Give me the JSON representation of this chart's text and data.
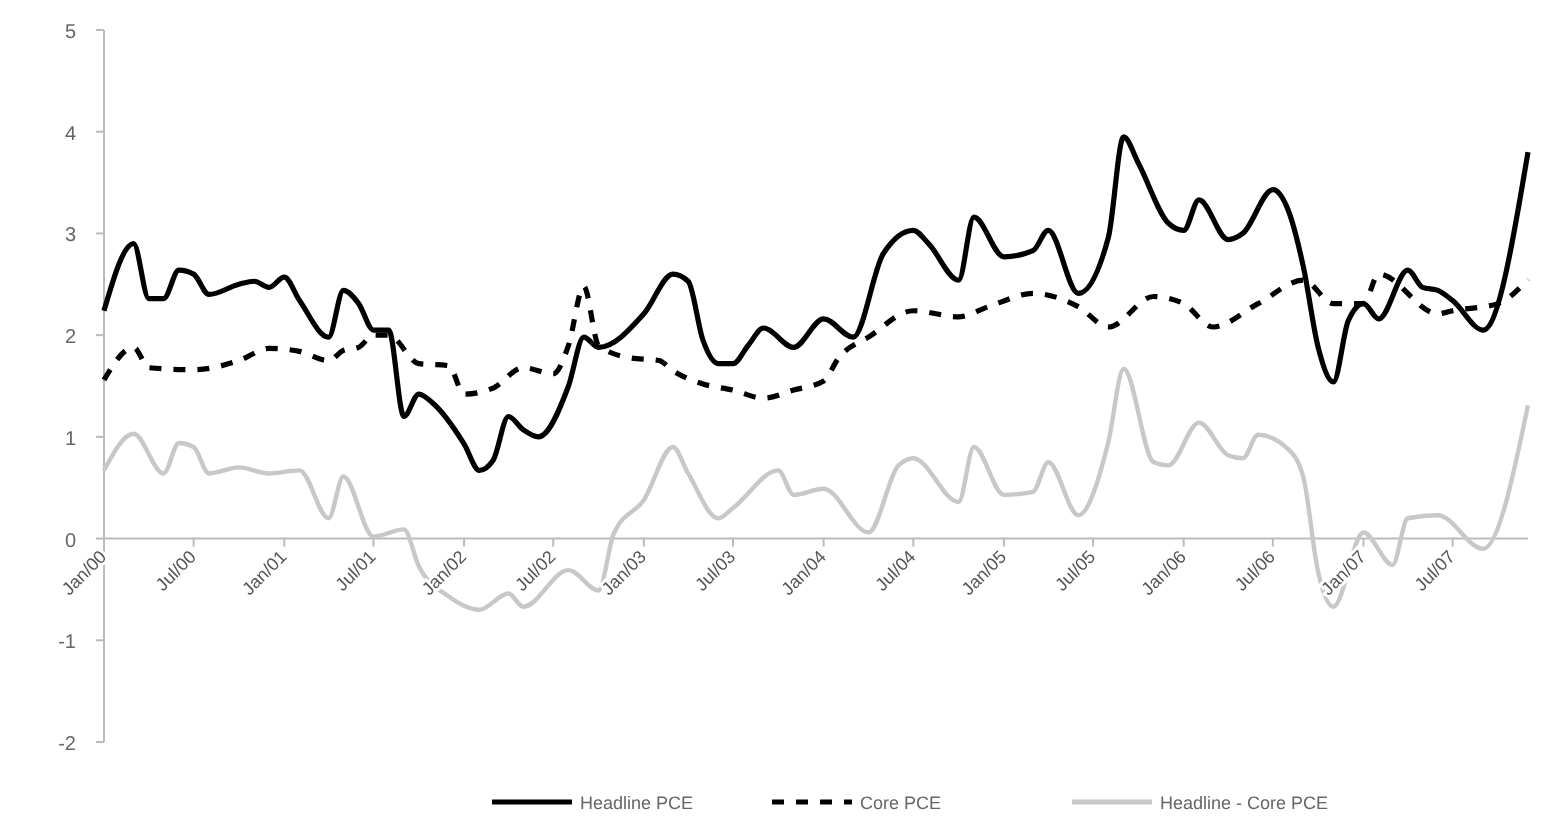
{
  "chart_data": {
    "type": "line",
    "ylim": [
      -2,
      5
    ],
    "yticks": [
      -2,
      -1,
      0,
      1,
      2,
      3,
      4,
      5
    ],
    "xlim": [
      "2000-01",
      "2007-12"
    ],
    "xticks": [
      {
        "value": "2000-01",
        "label": "Jan/00"
      },
      {
        "value": "2000-07",
        "label": "Jul/00"
      },
      {
        "value": "2001-01",
        "label": "Jan/01"
      },
      {
        "value": "2001-07",
        "label": "Jul/01"
      },
      {
        "value": "2002-01",
        "label": "Jan/02"
      },
      {
        "value": "2002-07",
        "label": "Jul/02"
      },
      {
        "value": "2003-01",
        "label": "Jan/03"
      },
      {
        "value": "2003-07",
        "label": "Jul/03"
      },
      {
        "value": "2004-01",
        "label": "Jan/04"
      },
      {
        "value": "2004-07",
        "label": "Jul/04"
      },
      {
        "value": "2005-01",
        "label": "Jan/05"
      },
      {
        "value": "2005-07",
        "label": "Jul/05"
      },
      {
        "value": "2006-01",
        "label": "Jan/06"
      },
      {
        "value": "2006-07",
        "label": "Jul/06"
      },
      {
        "value": "2007-01",
        "label": "Jan/07"
      },
      {
        "value": "2007-07",
        "label": "Jul/07"
      }
    ],
    "grid": false,
    "legend": "bottom",
    "series": [
      {
        "name": "Headline PCE",
        "color": "#000000",
        "line_style": "solid",
        "x": [
          "2000-01",
          "2000-03",
          "2000-04",
          "2000-05",
          "2000-06",
          "2000-07",
          "2000-08",
          "2000-10",
          "2000-11",
          "2000-12",
          "2001-01",
          "2001-02",
          "2001-04",
          "2001-05",
          "2001-06",
          "2001-07",
          "2001-08",
          "2001-09",
          "2001-10",
          "2001-11",
          "2002-01",
          "2002-02",
          "2002-03",
          "2002-04",
          "2002-05",
          "2002-06",
          "2002-08",
          "2002-09",
          "2002-10",
          "2003-01",
          "2003-03",
          "2003-04",
          "2003-05",
          "2003-06",
          "2003-07",
          "2003-08",
          "2003-09",
          "2003-11",
          "2004-01",
          "2004-03",
          "2004-05",
          "2004-07",
          "2004-08",
          "2004-10",
          "2004-11",
          "2005-01",
          "2005-03",
          "2005-04",
          "2005-06",
          "2005-08",
          "2005-09",
          "2005-10",
          "2005-12",
          "2006-01",
          "2006-02",
          "2006-04",
          "2006-05",
          "2006-07",
          "2006-08",
          "2006-09",
          "2006-10",
          "2006-11",
          "2006-12",
          "2007-01",
          "2007-02",
          "2007-04",
          "2007-05",
          "2007-06",
          "2007-07",
          "2007-09",
          "2007-12"
        ],
        "values": [
          2.24,
          2.9,
          2.36,
          2.36,
          2.64,
          2.6,
          2.4,
          2.5,
          2.53,
          2.47,
          2.57,
          2.34,
          1.98,
          2.44,
          2.31,
          2.05,
          2.05,
          1.2,
          1.42,
          1.32,
          0.93,
          0.67,
          0.77,
          1.2,
          1.07,
          1.0,
          1.5,
          1.98,
          1.88,
          2.21,
          2.6,
          2.53,
          1.95,
          1.72,
          1.72,
          1.9,
          2.07,
          1.88,
          2.16,
          1.98,
          2.8,
          3.03,
          2.9,
          2.54,
          3.16,
          2.77,
          2.83,
          3.03,
          2.41,
          2.96,
          3.95,
          3.69,
          3.1,
          3.03,
          3.33,
          2.94,
          3.0,
          3.43,
          3.23,
          2.67,
          1.88,
          1.54,
          2.14,
          2.31,
          2.16,
          2.64,
          2.47,
          2.44,
          2.34,
          2.05,
          3.8
        ]
      },
      {
        "name": "Core PCE",
        "color": "#000000",
        "line_style": "dashed",
        "x": [
          "2000-01",
          "2000-03",
          "2000-04",
          "2000-07",
          "2000-10",
          "2000-12",
          "2001-02",
          "2001-04",
          "2001-05",
          "2001-06",
          "2001-07",
          "2001-08",
          "2001-10",
          "2001-12",
          "2002-01",
          "2002-03",
          "2002-05",
          "2002-07",
          "2002-08",
          "2002-09",
          "2002-10",
          "2002-12",
          "2003-02",
          "2003-03",
          "2003-05",
          "2003-07",
          "2003-09",
          "2003-11",
          "2004-01",
          "2004-02",
          "2004-04",
          "2004-07",
          "2004-10",
          "2004-12",
          "2005-03",
          "2005-06",
          "2005-08",
          "2005-11",
          "2006-01",
          "2006-03",
          "2006-06",
          "2006-09",
          "2006-11",
          "2007-01",
          "2007-02",
          "2007-06",
          "2007-07",
          "2007-10",
          "2007-12"
        ],
        "values": [
          1.56,
          1.88,
          1.68,
          1.66,
          1.75,
          1.87,
          1.84,
          1.75,
          1.85,
          1.88,
          2.0,
          2.0,
          1.72,
          1.7,
          1.42,
          1.48,
          1.68,
          1.62,
          1.9,
          2.48,
          1.9,
          1.78,
          1.75,
          1.65,
          1.52,
          1.46,
          1.38,
          1.46,
          1.55,
          1.78,
          1.98,
          2.24,
          2.18,
          2.28,
          2.41,
          2.28,
          2.08,
          2.38,
          2.31,
          2.08,
          2.31,
          2.54,
          2.31,
          2.31,
          2.6,
          2.21,
          2.24,
          2.31,
          2.55
        ]
      },
      {
        "name": "Headline - Core PCE",
        "color": "#c8c8c8",
        "line_style": "solid",
        "x": [
          "2000-01",
          "2000-03",
          "2000-05",
          "2000-06",
          "2000-07",
          "2000-08",
          "2000-10",
          "2000-12",
          "2001-02",
          "2001-04",
          "2001-05",
          "2001-07",
          "2001-09",
          "2001-10",
          "2001-12",
          "2002-02",
          "2002-04",
          "2002-05",
          "2002-08",
          "2002-10",
          "2002-11",
          "2003-01",
          "2003-03",
          "2003-04",
          "2003-06",
          "2003-07",
          "2003-10",
          "2003-11",
          "2004-01",
          "2004-04",
          "2004-06",
          "2004-07",
          "2004-10",
          "2004-11",
          "2005-01",
          "2005-03",
          "2005-04",
          "2005-06",
          "2005-08",
          "2005-09",
          "2005-11",
          "2005-12",
          "2006-02",
          "2006-04",
          "2006-05",
          "2006-06",
          "2006-08",
          "2006-09",
          "2006-10",
          "2006-11",
          "2007-01",
          "2007-03",
          "2007-04",
          "2007-06",
          "2007-09",
          "2007-12"
        ],
        "values": [
          0.67,
          1.03,
          0.64,
          0.94,
          0.9,
          0.64,
          0.7,
          0.64,
          0.67,
          0.2,
          0.61,
          0.02,
          0.09,
          -0.27,
          -0.57,
          -0.7,
          -0.54,
          -0.67,
          -0.31,
          -0.51,
          0.05,
          0.38,
          0.9,
          0.64,
          0.2,
          0.3,
          0.67,
          0.43,
          0.49,
          0.06,
          0.72,
          0.79,
          0.36,
          0.9,
          0.43,
          0.46,
          0.75,
          0.23,
          0.95,
          1.67,
          0.75,
          0.72,
          1.14,
          0.82,
          0.79,
          1.02,
          0.88,
          0.6,
          -0.33,
          -0.67,
          0.06,
          -0.26,
          0.2,
          0.23,
          -0.1,
          1.31
        ]
      }
    ]
  }
}
